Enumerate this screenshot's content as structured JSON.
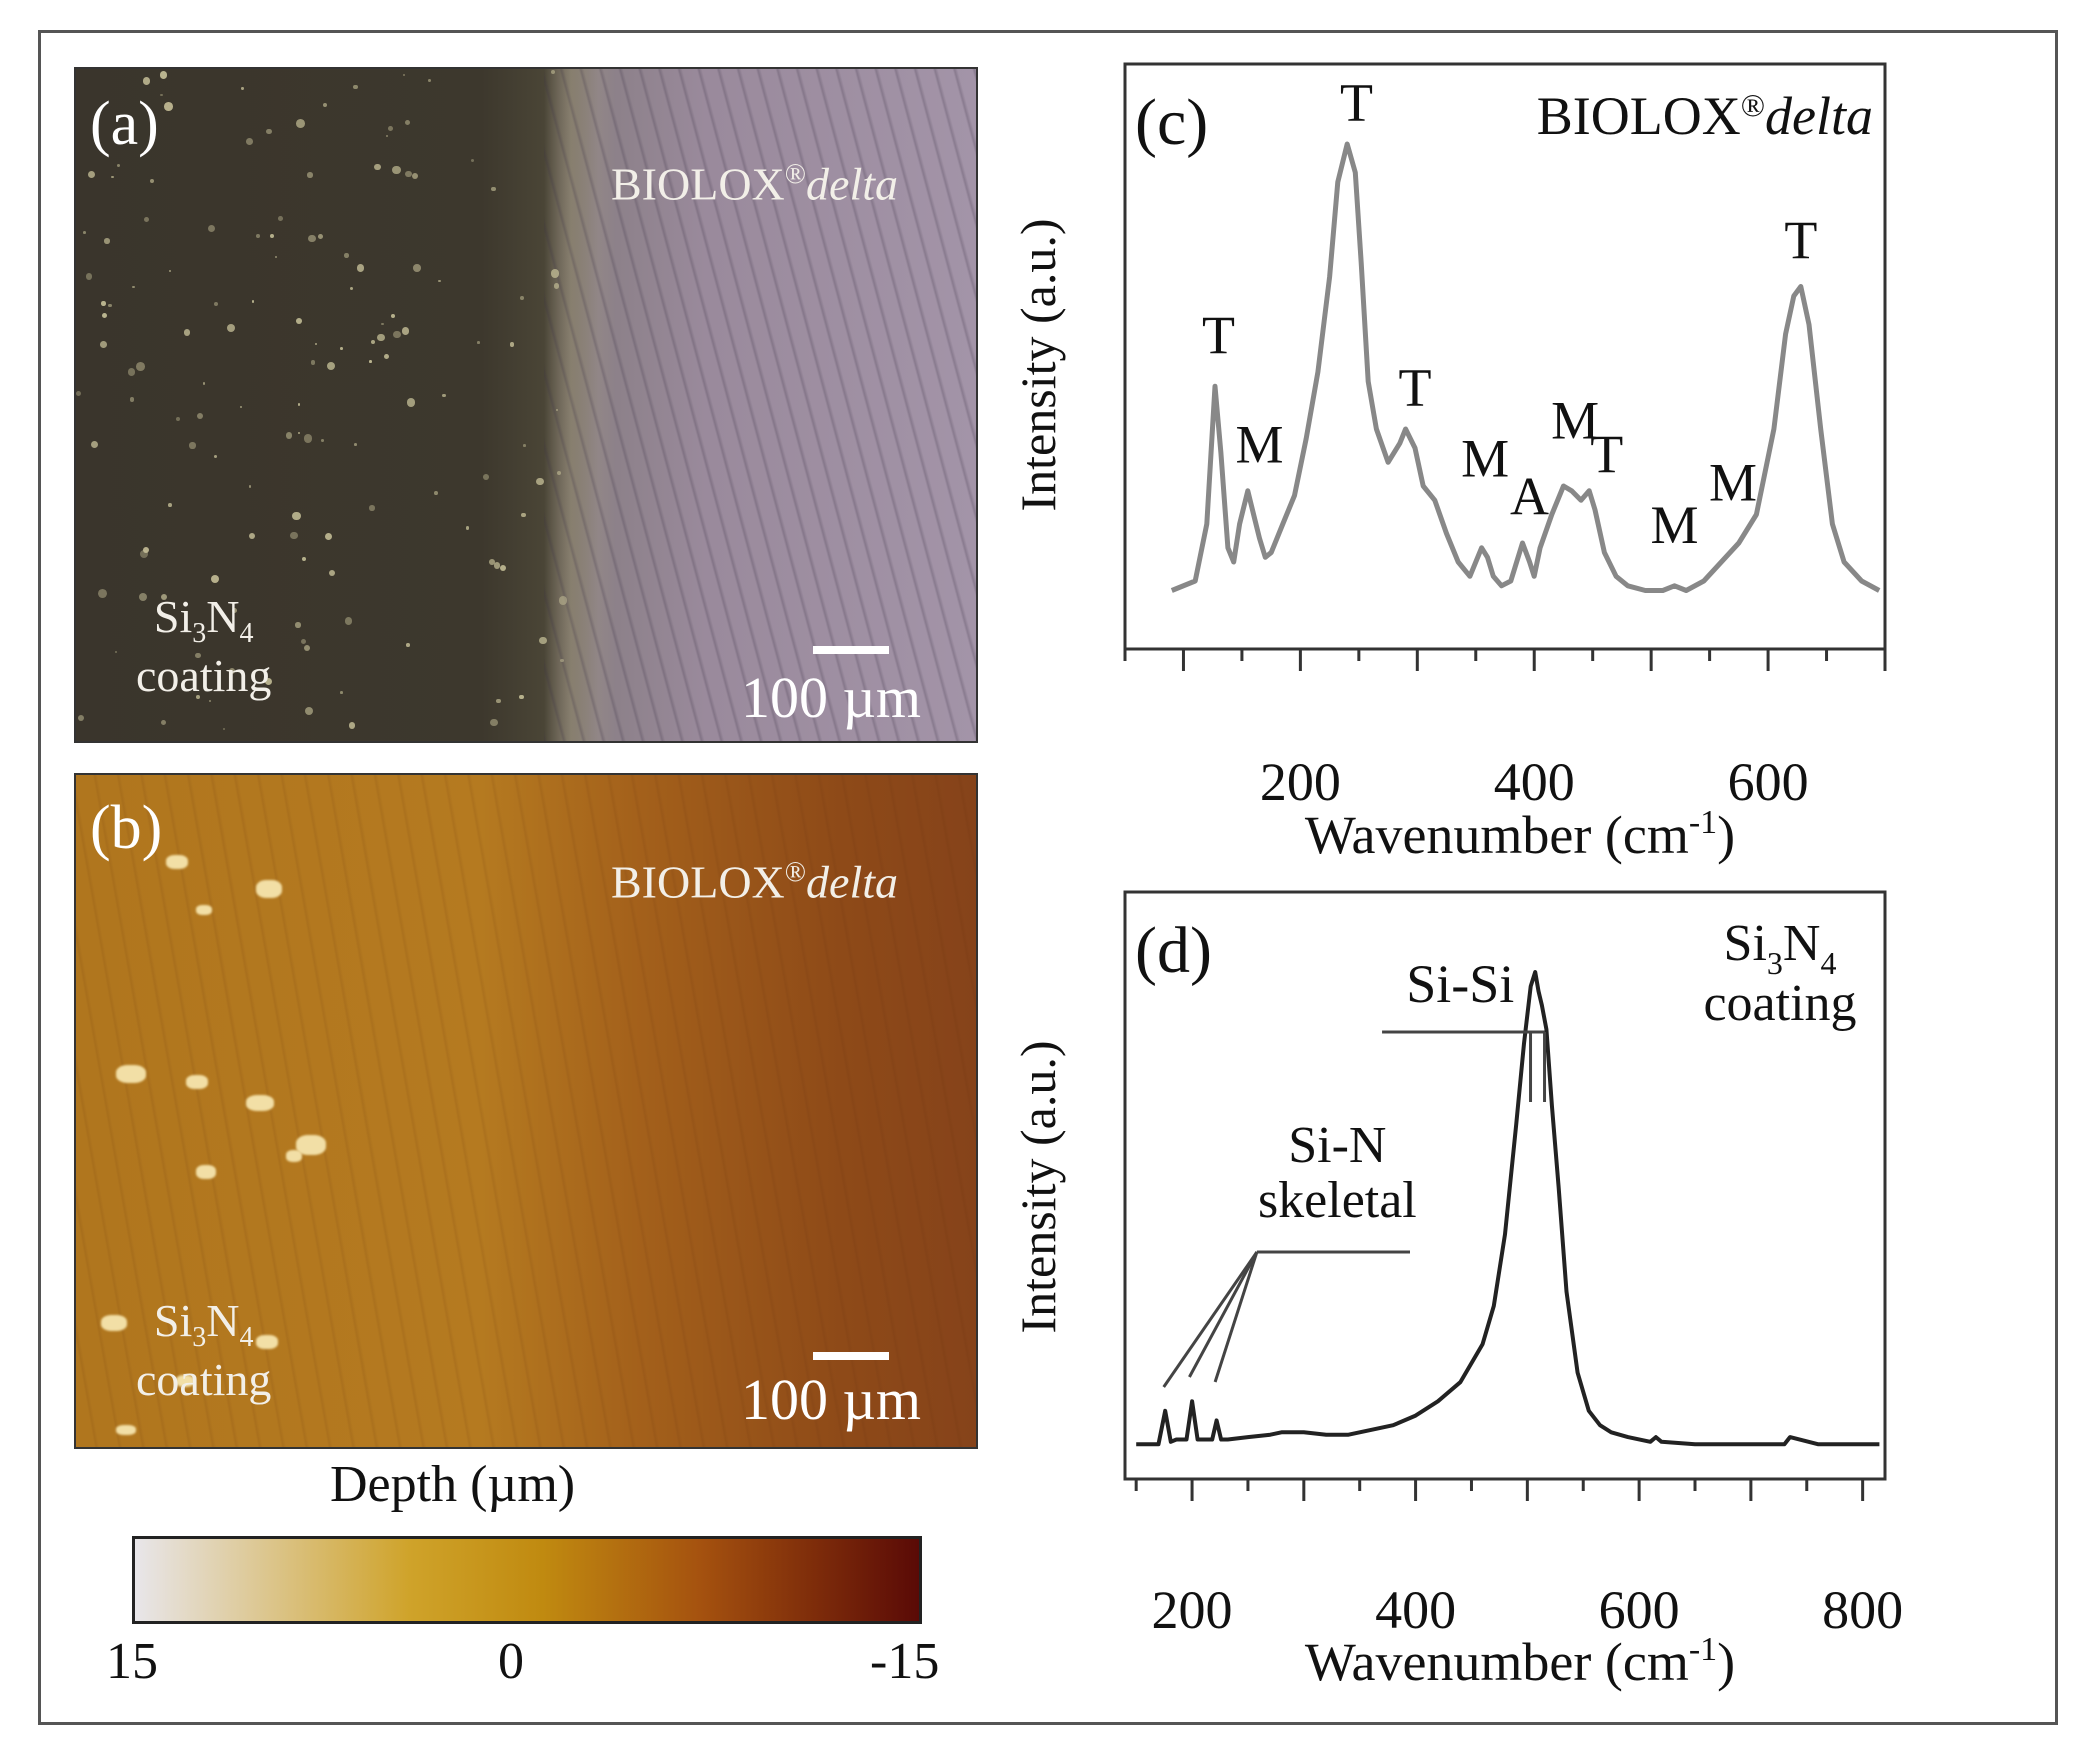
{
  "panels": {
    "a": {
      "label": "(a)",
      "material": {
        "name": "BIOLOX",
        "reg": "®",
        "suffix": "delta"
      },
      "coating_line1": "Si",
      "coating_sub1": "3",
      "coating_n": "N",
      "coating_sub2": "4",
      "coating_line2": "coating",
      "scalebar_text": "100 µm",
      "colors": {
        "coating": "#3d382d",
        "substrate": "#a394a8"
      }
    },
    "b": {
      "label": "(b)",
      "material": {
        "name": "BIOLOX",
        "reg": "®",
        "suffix": "delta"
      },
      "coating_line1": "Si",
      "coating_sub1": "3",
      "coating_n": "N",
      "coating_sub2": "4",
      "coating_line2": "coating",
      "scalebar_text": "100 µm",
      "colors": {
        "coating": "#b57a20",
        "substrate": "#86431a"
      }
    }
  },
  "colorbar": {
    "title": "Depth (µm)",
    "ticks": [
      "15",
      "0",
      "-15"
    ],
    "range": [
      15,
      -15
    ],
    "colors": [
      "#e8e6ea",
      "#cfa32a",
      "#c08a10",
      "#a5520f",
      "#5a0a06"
    ]
  },
  "chart_data": [
    {
      "id": "c",
      "type": "line",
      "panel_label": "(c)",
      "title": "BIOLOX®delta",
      "title_parts": {
        "name": "BIOLOX",
        "reg": "®",
        "suffix": "delta"
      },
      "xlabel": "Wavenumber (cm-1)",
      "xlabel_parts": {
        "base": "Wavenumber (cm",
        "sup": "-1",
        "close": ")"
      },
      "ylabel": "Intensity (a.u.)",
      "xlim": [
        50,
        700
      ],
      "ylim": [
        0,
        1
      ],
      "xticks": [
        200,
        400,
        600
      ],
      "minor_step": 50,
      "line_color": "#888888",
      "series": [
        {
          "name": "BIOLOX delta",
          "x": [
            90,
            110,
            120,
            127,
            132,
            138,
            143,
            148,
            155,
            160,
            165,
            170,
            175,
            185,
            195,
            205,
            215,
            225,
            232,
            240,
            247,
            252,
            258,
            265,
            275,
            285,
            290,
            298,
            305,
            315,
            325,
            335,
            345,
            355,
            360,
            365,
            372,
            380,
            390,
            396,
            400,
            405,
            415,
            425,
            432,
            440,
            447,
            452,
            460,
            470,
            480,
            495,
            510,
            520,
            530,
            545,
            560,
            575,
            590,
            605,
            615,
            622,
            628,
            635,
            645,
            655,
            665,
            680,
            695
          ],
          "y": [
            0.06,
            0.08,
            0.2,
            0.49,
            0.35,
            0.15,
            0.12,
            0.2,
            0.27,
            0.22,
            0.17,
            0.13,
            0.14,
            0.2,
            0.26,
            0.38,
            0.52,
            0.72,
            0.92,
            1.0,
            0.94,
            0.75,
            0.5,
            0.4,
            0.33,
            0.37,
            0.4,
            0.36,
            0.28,
            0.25,
            0.18,
            0.12,
            0.09,
            0.15,
            0.13,
            0.09,
            0.07,
            0.08,
            0.16,
            0.12,
            0.09,
            0.15,
            0.22,
            0.28,
            0.27,
            0.25,
            0.27,
            0.23,
            0.14,
            0.09,
            0.07,
            0.06,
            0.06,
            0.07,
            0.06,
            0.08,
            0.12,
            0.16,
            0.22,
            0.4,
            0.6,
            0.68,
            0.7,
            0.62,
            0.4,
            0.2,
            0.12,
            0.08,
            0.06
          ]
        }
      ],
      "annotations": [
        {
          "text": "T",
          "x": 130,
          "y": 0.56
        },
        {
          "text": "M",
          "x": 165,
          "y": 0.33
        },
        {
          "text": "T",
          "x": 248,
          "y": 1.05
        },
        {
          "text": "T",
          "x": 298,
          "y": 0.45
        },
        {
          "text": "M",
          "x": 358,
          "y": 0.3
        },
        {
          "text": "A",
          "x": 396,
          "y": 0.22
        },
        {
          "text": "M",
          "x": 435,
          "y": 0.38
        },
        {
          "text": "T",
          "x": 462,
          "y": 0.31
        },
        {
          "text": "M",
          "x": 520,
          "y": 0.16
        },
        {
          "text": "M",
          "x": 570,
          "y": 0.25
        },
        {
          "text": "T",
          "x": 628,
          "y": 0.76
        }
      ]
    },
    {
      "id": "d",
      "type": "line",
      "panel_label": "(d)",
      "title": "Si3N4 coating",
      "title_parts": {
        "line1": "Si",
        "sub1": "3",
        "n": "N",
        "sub2": "4",
        "line2": "coating"
      },
      "xlabel": "Wavenumber (cm-1)",
      "xlabel_parts": {
        "base": "Wavenumber (cm",
        "sup": "-1",
        "close": ")"
      },
      "ylabel": "Intensity (a.u.)",
      "xlim": [
        140,
        820
      ],
      "ylim": [
        0,
        1
      ],
      "xticks": [
        200,
        400,
        600,
        800
      ],
      "minor_step": 50,
      "line_color": "#222222",
      "series": [
        {
          "name": "Si3N4 coating",
          "x": [
            150,
            170,
            176,
            181,
            186,
            195,
            200,
            205,
            210,
            218,
            222,
            226,
            232,
            250,
            270,
            280,
            300,
            320,
            340,
            360,
            380,
            400,
            420,
            440,
            460,
            470,
            480,
            490,
            497,
            503,
            507,
            510,
            513,
            517,
            522,
            528,
            535,
            545,
            555,
            565,
            575,
            590,
            610,
            615,
            620,
            650,
            700,
            730,
            735,
            760,
            800,
            815
          ],
          "y": [
            0.01,
            0.01,
            0.08,
            0.015,
            0.02,
            0.02,
            0.1,
            0.02,
            0.02,
            0.02,
            0.06,
            0.02,
            0.02,
            0.025,
            0.03,
            0.035,
            0.035,
            0.03,
            0.03,
            0.04,
            0.05,
            0.07,
            0.1,
            0.14,
            0.22,
            0.3,
            0.45,
            0.68,
            0.85,
            0.97,
            1.0,
            0.96,
            0.93,
            0.88,
            0.72,
            0.55,
            0.33,
            0.16,
            0.08,
            0.05,
            0.035,
            0.025,
            0.015,
            0.025,
            0.015,
            0.01,
            0.01,
            0.01,
            0.025,
            0.01,
            0.01,
            0.01
          ]
        }
      ],
      "annotations": [
        {
          "text": "Si-Si",
          "x": 440,
          "y": 1.02,
          "kind": "bracket-label"
        },
        {
          "text": "Si-N",
          "x": 330,
          "y": 0.76,
          "kind": "bracket-label"
        },
        {
          "text": "skeletal",
          "x": 330,
          "y": 0.63,
          "kind": "bracket-label"
        }
      ]
    }
  ]
}
